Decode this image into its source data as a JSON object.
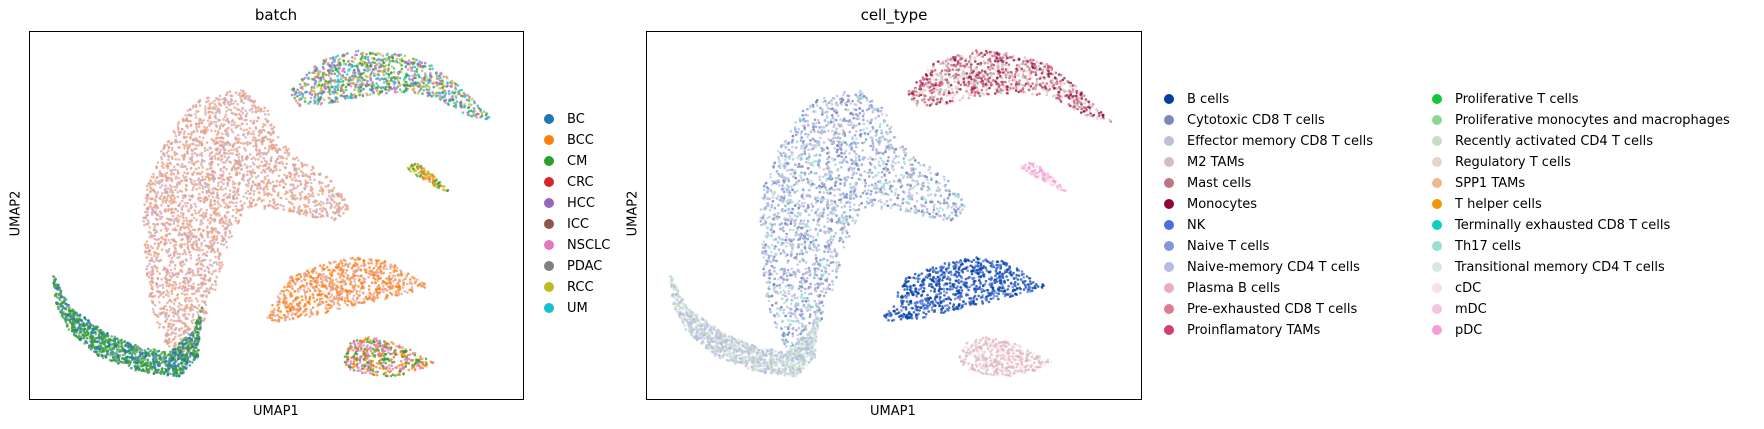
{
  "chart_data": [
    {
      "type": "scatter",
      "title": "batch",
      "xlabel": "UMAP1",
      "ylabel": "UMAP2",
      "grid": false,
      "legend_position": "right",
      "legend": [
        {
          "label": "BC",
          "color": "#1f77b4"
        },
        {
          "label": "BCC",
          "color": "#ff7f0e"
        },
        {
          "label": "CM",
          "color": "#2ca02c"
        },
        {
          "label": "CRC",
          "color": "#d62728"
        },
        {
          "label": "HCC",
          "color": "#9467bd"
        },
        {
          "label": "ICC",
          "color": "#8c564b"
        },
        {
          "label": "NSCLC",
          "color": "#e377c2"
        },
        {
          "label": "PDAC",
          "color": "#7f7f7f"
        },
        {
          "label": "RCC",
          "color": "#bcbd22"
        },
        {
          "label": "UM",
          "color": "#17becf"
        }
      ],
      "clusters": [
        {
          "region": "main-body",
          "mix": [
            "#e8a090",
            "#d9a0a0",
            "#f0a070",
            "#c8a8b8"
          ]
        },
        {
          "region": "lower-arm",
          "mix": [
            "#2ca02c",
            "#1f77b4",
            "#5aa05a"
          ]
        },
        {
          "region": "top-right",
          "mix": [
            "#bcbd22",
            "#17becf",
            "#9467bd",
            "#e377c2",
            "#2ca02c"
          ]
        },
        {
          "region": "mid-right",
          "mix": [
            "#ff7f0e",
            "#e8a090"
          ]
        },
        {
          "region": "bottom-right",
          "mix": [
            "#ff7f0e",
            "#e377c2",
            "#2ca02c"
          ]
        },
        {
          "region": "small-right",
          "mix": [
            "#ff7f0e",
            "#2ca02c",
            "#bcbd22"
          ]
        }
      ]
    },
    {
      "type": "scatter",
      "title": "cell_type",
      "xlabel": "UMAP1",
      "ylabel": "UMAP2",
      "grid": false,
      "legend_position": "right",
      "legend": [
        {
          "label": "B cells",
          "color": "#023fa5"
        },
        {
          "label": "Cytotoxic CD8 T cells",
          "color": "#7d87b9"
        },
        {
          "label": "Effector memory CD8 T cells",
          "color": "#bec1d4"
        },
        {
          "label": "M2 TAMs",
          "color": "#d6bcc0"
        },
        {
          "label": "Mast cells",
          "color": "#bb7784"
        },
        {
          "label": "Monocytes",
          "color": "#8e063b"
        },
        {
          "label": "NK",
          "color": "#4a6fe3"
        },
        {
          "label": "Naive T cells",
          "color": "#8595e1"
        },
        {
          "label": "Naive-memory CD4 T cells",
          "color": "#b5bbe3"
        },
        {
          "label": "Plasma B cells",
          "color": "#e6afb9"
        },
        {
          "label": "Pre-exhausted CD8 T cells",
          "color": "#e07b91"
        },
        {
          "label": "Proinflamatory TAMs",
          "color": "#d33f6a"
        },
        {
          "label": "Proliferative T cells",
          "color": "#11c638"
        },
        {
          "label": "Proliferative monocytes and macrophages",
          "color": "#8dd593"
        },
        {
          "label": "Recently activated CD4 T cells",
          "color": "#c6dec7"
        },
        {
          "label": "Regulatory T cells",
          "color": "#ead3c6"
        },
        {
          "label": "SPP1 TAMs",
          "color": "#f0b98d"
        },
        {
          "label": "T helper cells",
          "color": "#ef9708"
        },
        {
          "label": "Terminally exhausted CD8 T cells",
          "color": "#0fcfc0"
        },
        {
          "label": "Th17 cells",
          "color": "#9cded6"
        },
        {
          "label": "Transitional memory CD4 T cells",
          "color": "#d5eae7"
        },
        {
          "label": "cDC",
          "color": "#f3e1eb"
        },
        {
          "label": "mDC",
          "color": "#f6c4e1"
        },
        {
          "label": "pDC",
          "color": "#f79cd4"
        }
      ],
      "clusters": [
        {
          "region": "main-body",
          "mix": [
            "#b5bbe3",
            "#8595e1",
            "#bec1d4",
            "#9cded6",
            "#7d87b9"
          ]
        },
        {
          "region": "lower-arm",
          "mix": [
            "#bec1d4",
            "#d5eae7",
            "#c6dec7",
            "#b5bbe3"
          ]
        },
        {
          "region": "top-right",
          "mix": [
            "#8e063b",
            "#d6bcc0",
            "#bb7784",
            "#ead3c6",
            "#d33f6a"
          ]
        },
        {
          "region": "mid-right",
          "mix": [
            "#023fa5",
            "#4a6fe3",
            "#023fa5"
          ]
        },
        {
          "region": "bottom-right",
          "mix": [
            "#e6afb9",
            "#f3e1eb",
            "#d6bcc0"
          ]
        },
        {
          "region": "small-right",
          "mix": [
            "#f79cd4",
            "#f6c4e1"
          ]
        }
      ]
    }
  ]
}
